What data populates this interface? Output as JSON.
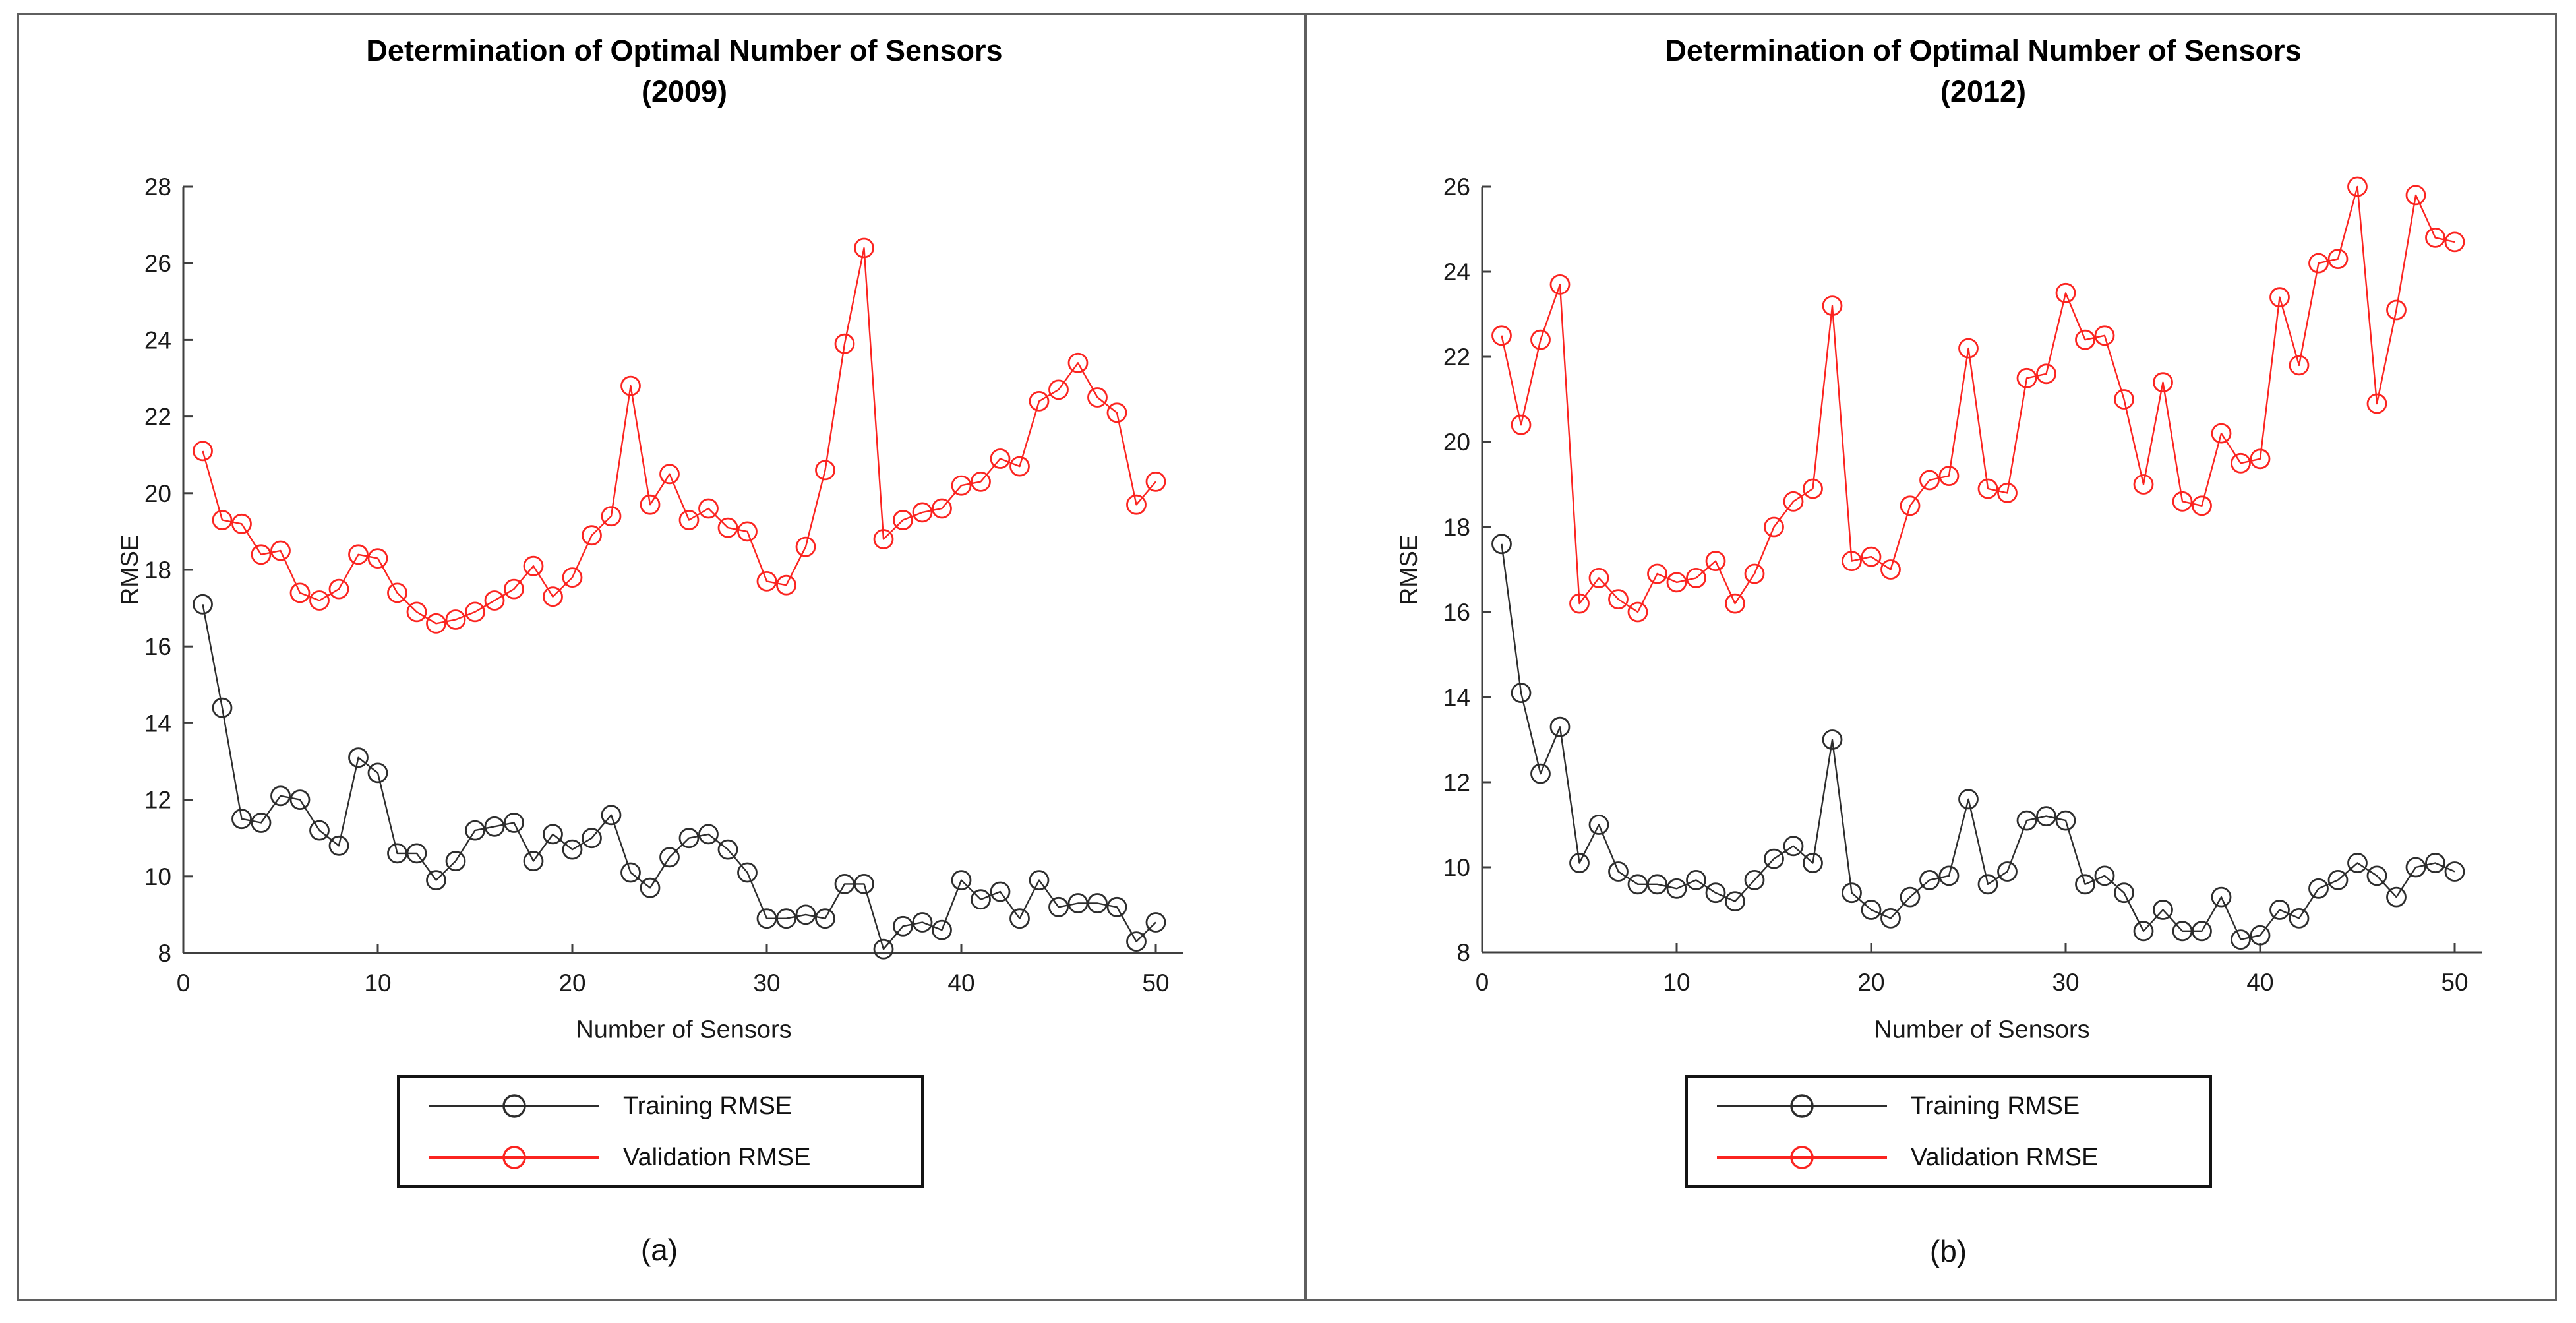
{
  "figure": {
    "background": "#ffffff",
    "border_color": "#5f5f5f",
    "divider_color": "#5f5f5f",
    "axis_color": "#3f3f3f",
    "tick_text_color": "#1a1a1a"
  },
  "legend": {
    "items": [
      {
        "label": "Training RMSE",
        "color": "#2d2d2d"
      },
      {
        "label": "Validation RMSE",
        "color": "#fb2420"
      }
    ]
  },
  "chart_data": [
    {
      "type": "line",
      "title": "Determination of Optimal Number of Sensors",
      "subtitle": "(2009)",
      "caption": "(a)",
      "xlabel": "Number of Sensors",
      "ylabel": "RMSE",
      "xlim": [
        0,
        51.5
      ],
      "ylim": [
        8,
        28
      ],
      "xticks": [
        0,
        10,
        20,
        30,
        40,
        50
      ],
      "yticks": [
        8,
        10,
        12,
        14,
        16,
        18,
        20,
        22,
        24,
        26,
        28
      ],
      "grid": false,
      "legend_position": "below",
      "x": [
        1,
        2,
        3,
        4,
        5,
        6,
        7,
        8,
        9,
        10,
        11,
        12,
        13,
        14,
        15,
        16,
        17,
        18,
        19,
        20,
        21,
        22,
        23,
        24,
        25,
        26,
        27,
        28,
        29,
        30,
        31,
        32,
        33,
        34,
        35,
        36,
        37,
        38,
        39,
        40,
        41,
        42,
        43,
        44,
        45,
        46,
        47,
        48,
        49,
        50
      ],
      "series": [
        {
          "name": "Training RMSE",
          "color": "#2d2d2d",
          "marker": "circle",
          "values": [
            17.1,
            14.4,
            11.5,
            11.4,
            12.1,
            12.0,
            11.2,
            10.8,
            13.1,
            12.7,
            10.6,
            10.6,
            9.9,
            10.4,
            11.2,
            11.3,
            11.4,
            10.4,
            11.1,
            10.7,
            11.0,
            11.6,
            10.1,
            9.7,
            10.5,
            11.0,
            11.1,
            10.7,
            10.1,
            8.9,
            8.9,
            9.0,
            8.9,
            9.8,
            9.8,
            8.1,
            8.7,
            8.8,
            8.6,
            9.9,
            9.4,
            9.6,
            8.9,
            9.9,
            9.2,
            9.3,
            9.3,
            9.2,
            8.3,
            8.8
          ]
        },
        {
          "name": "Validation RMSE",
          "color": "#fb2420",
          "marker": "circle",
          "values": [
            21.1,
            19.3,
            19.2,
            18.4,
            18.5,
            17.4,
            17.2,
            17.5,
            18.4,
            18.3,
            17.4,
            16.9,
            16.6,
            16.7,
            16.9,
            17.2,
            17.5,
            18.1,
            17.3,
            17.8,
            18.9,
            19.4,
            22.8,
            19.7,
            20.5,
            19.3,
            19.6,
            19.1,
            19.0,
            17.7,
            17.6,
            18.6,
            20.6,
            23.9,
            26.4,
            18.8,
            19.3,
            19.5,
            19.6,
            20.2,
            20.3,
            20.9,
            20.7,
            22.4,
            22.7,
            23.4,
            22.5,
            22.1,
            19.7,
            20.3
          ]
        }
      ]
    },
    {
      "type": "line",
      "title": "Determination of Optimal Number of Sensors",
      "subtitle": "(2012)",
      "caption": "(b)",
      "xlabel": "Number of Sensors",
      "ylabel": "RMSE",
      "xlim": [
        0,
        51.5
      ],
      "ylim": [
        8,
        26
      ],
      "xticks": [
        0,
        10,
        20,
        30,
        40,
        50
      ],
      "yticks": [
        8,
        10,
        12,
        14,
        16,
        18,
        20,
        22,
        24,
        26
      ],
      "grid": false,
      "legend_position": "below",
      "x": [
        1,
        2,
        3,
        4,
        5,
        6,
        7,
        8,
        9,
        10,
        11,
        12,
        13,
        14,
        15,
        16,
        17,
        18,
        19,
        20,
        21,
        22,
        23,
        24,
        25,
        26,
        27,
        28,
        29,
        30,
        31,
        32,
        33,
        34,
        35,
        36,
        37,
        38,
        39,
        40,
        41,
        42,
        43,
        44,
        45,
        46,
        47,
        48,
        49,
        50
      ],
      "series": [
        {
          "name": "Training RMSE",
          "color": "#2d2d2d",
          "marker": "circle",
          "values": [
            17.6,
            14.1,
            12.2,
            13.3,
            10.1,
            11.0,
            9.9,
            9.6,
            9.6,
            9.5,
            9.7,
            9.4,
            9.2,
            9.7,
            10.2,
            10.5,
            10.1,
            13.0,
            9.4,
            9.0,
            8.8,
            9.3,
            9.7,
            9.8,
            11.6,
            9.6,
            9.9,
            11.1,
            11.2,
            11.1,
            9.6,
            9.8,
            9.4,
            8.5,
            9.0,
            8.5,
            8.5,
            9.3,
            8.3,
            8.4,
            9.0,
            8.8,
            9.5,
            9.7,
            10.1,
            9.8,
            9.3,
            10.0,
            10.1,
            9.9
          ]
        },
        {
          "name": "Validation RMSE",
          "color": "#fb2420",
          "marker": "circle",
          "values": [
            22.5,
            20.4,
            22.4,
            23.7,
            16.2,
            16.8,
            16.3,
            16.0,
            16.9,
            16.7,
            16.8,
            17.2,
            16.2,
            16.9,
            18.0,
            18.6,
            18.9,
            23.2,
            17.2,
            17.3,
            17.0,
            18.5,
            19.1,
            19.2,
            22.2,
            18.9,
            18.8,
            21.5,
            21.6,
            23.5,
            22.4,
            22.5,
            21.0,
            19.0,
            21.4,
            18.6,
            18.5,
            20.2,
            19.5,
            19.6,
            23.4,
            21.8,
            24.2,
            24.3,
            26.0,
            20.9,
            23.1,
            25.8,
            24.8,
            24.7
          ]
        }
      ]
    }
  ]
}
